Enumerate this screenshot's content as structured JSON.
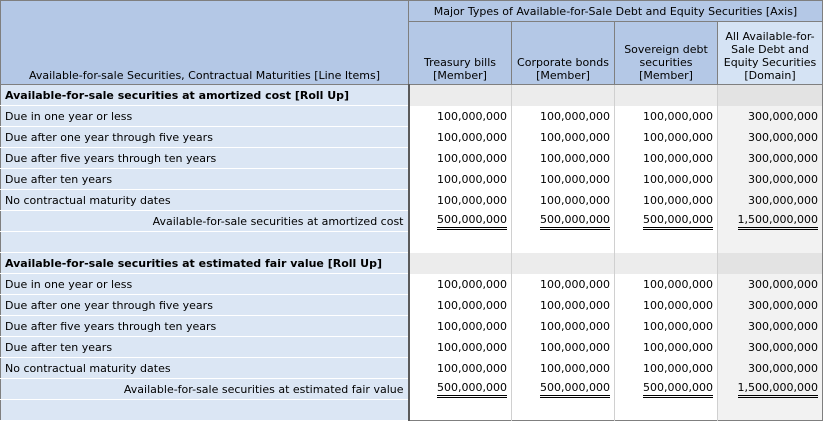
{
  "header": {
    "axis_title": "Major Types of Available-for-Sale Debt and Equity Securities [Axis]",
    "line_items_title": "Available-for-sale Securities, Contractual Maturities [Line Items]",
    "columns": [
      "Treasury bills\n[Member]",
      "Corporate bonds\n[Member]",
      "Sovereign debt\nsecurities\n[Member]",
      "All Available-for-\nSale Debt and\nEquity Securities\n[Domain]"
    ]
  },
  "sections": [
    {
      "title": "Available-for-sale securities at amortized cost [Roll Up]",
      "rows": [
        {
          "label": "Due in one year or less",
          "values": [
            "100,000,000",
            "100,000,000",
            "100,000,000",
            "300,000,000"
          ]
        },
        {
          "label": "Due after one year through five years",
          "values": [
            "100,000,000",
            "100,000,000",
            "100,000,000",
            "300,000,000"
          ]
        },
        {
          "label": "Due after five years through ten years",
          "values": [
            "100,000,000",
            "100,000,000",
            "100,000,000",
            "300,000,000"
          ]
        },
        {
          "label": "Due after ten years",
          "values": [
            "100,000,000",
            "100,000,000",
            "100,000,000",
            "300,000,000"
          ]
        },
        {
          "label": "No contractual maturity dates",
          "values": [
            "100,000,000",
            "100,000,000",
            "100,000,000",
            "300,000,000"
          ]
        }
      ],
      "total": {
        "label": "Available-for-sale securities at amortized cost",
        "values": [
          "500,000,000",
          "500,000,000",
          "500,000,000",
          "1,500,000,000"
        ]
      }
    },
    {
      "title": "Available-for-sale securities at estimated fair value [Roll Up]",
      "rows": [
        {
          "label": "Due in one year or less",
          "values": [
            "100,000,000",
            "100,000,000",
            "100,000,000",
            "300,000,000"
          ]
        },
        {
          "label": "Due after one year through five years",
          "values": [
            "100,000,000",
            "100,000,000",
            "100,000,000",
            "300,000,000"
          ]
        },
        {
          "label": "Due after five years through ten years",
          "values": [
            "100,000,000",
            "100,000,000",
            "100,000,000",
            "300,000,000"
          ]
        },
        {
          "label": "Due after ten years",
          "values": [
            "100,000,000",
            "100,000,000",
            "100,000,000",
            "300,000,000"
          ]
        },
        {
          "label": "No contractual maturity dates",
          "values": [
            "100,000,000",
            "100,000,000",
            "100,000,000",
            "300,000,000"
          ]
        }
      ],
      "total": {
        "label": "Available-for-sale securities at estimated fair value",
        "values": [
          "500,000,000",
          "500,000,000",
          "500,000,000",
          "1,500,000,000"
        ]
      }
    }
  ]
}
